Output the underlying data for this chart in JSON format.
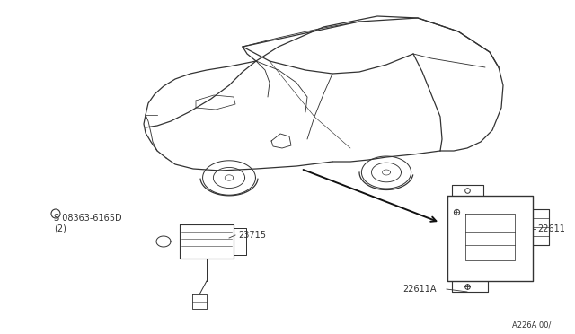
{
  "bg_color": "#ffffff",
  "line_color": "#333333",
  "figsize": [
    6.4,
    3.72
  ],
  "dpi": 100,
  "labels": {
    "part_08363": "S 08363-6165D\n(2)",
    "part_23715": "23715",
    "part_22611": "22611",
    "part_22611A": "22611A",
    "diagram_num": "A226A 00/"
  }
}
